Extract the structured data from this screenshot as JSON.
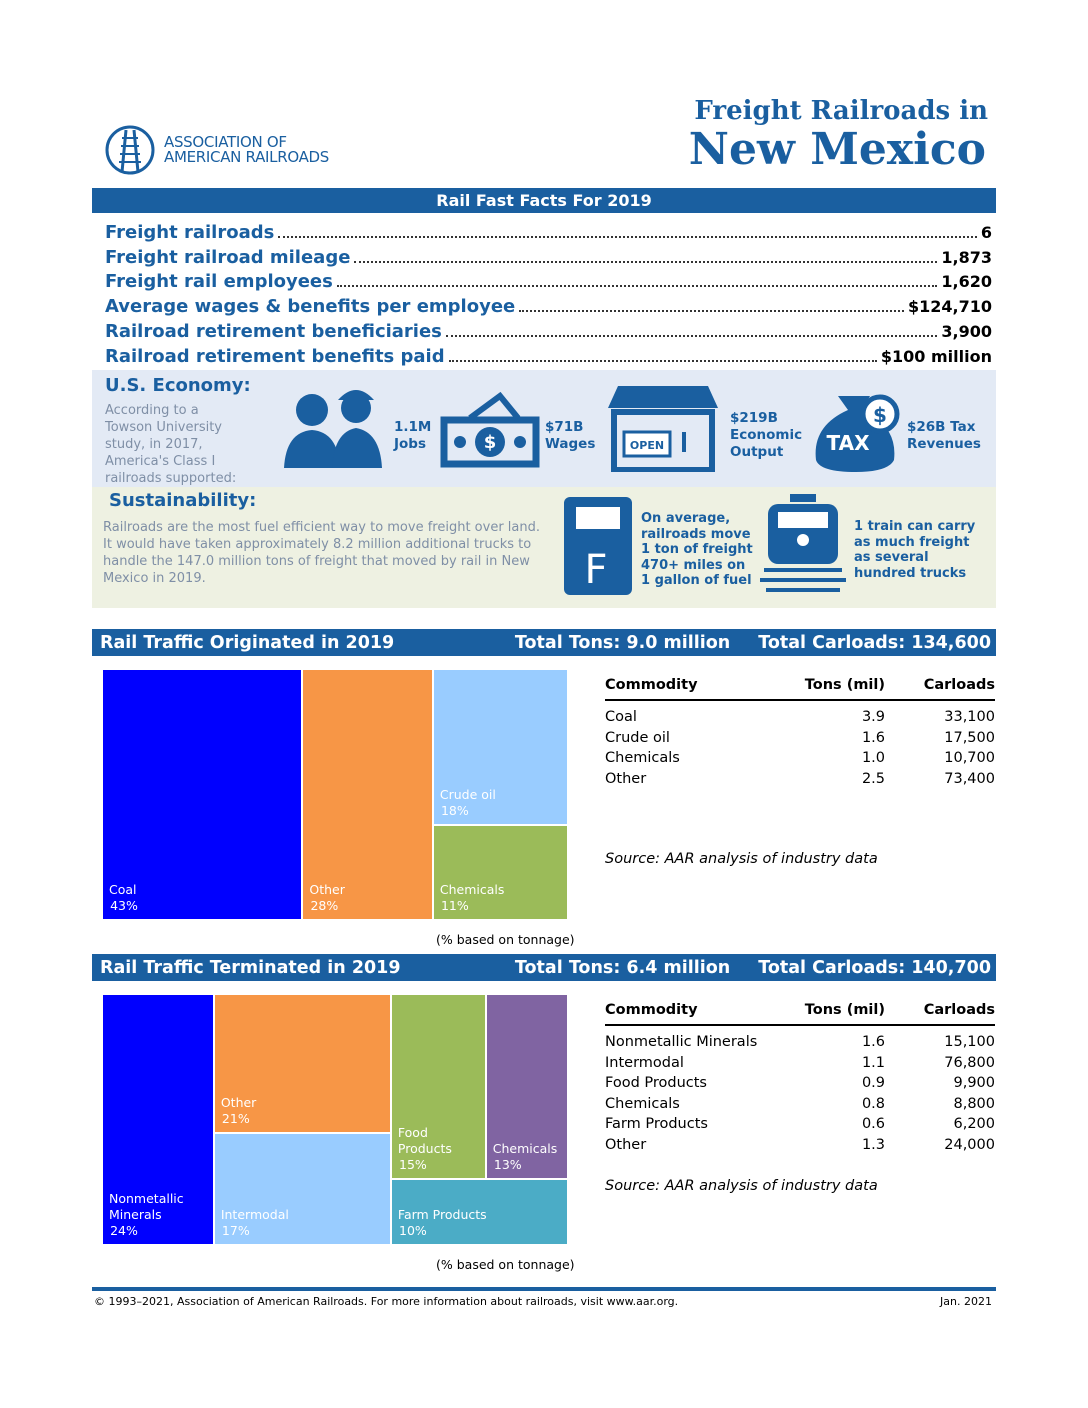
{
  "header": {
    "title_line1": "Freight Railroads in",
    "title_line2": "New Mexico",
    "logo_line1": "ASSOCIATION OF",
    "logo_line2": "AMERICAN RAILROADS"
  },
  "fast_facts": {
    "title": "Rail Fast Facts For 2019",
    "rows": [
      [
        "Freight railroads",
        "6"
      ],
      [
        "Freight railroad mileage",
        "1,873"
      ],
      [
        "Freight rail employees",
        "1,620"
      ],
      [
        "Average wages & benefits per employee",
        "$124,710"
      ],
      [
        "Railroad retirement beneficiaries",
        "3,900"
      ],
      [
        "Railroad retirement benefits paid",
        "$100 million"
      ]
    ]
  },
  "economy": {
    "title": "U.S. Economy:",
    "intro": "According to a Towson University study, in 2017, America's Class I railroads supported:",
    "items": [
      "1.1M Jobs",
      "$71B Wages",
      "$219B Economic Output",
      "$26B Tax Revenues"
    ]
  },
  "sustainability": {
    "title": "Sustainability:",
    "text": "Railroads are the most fuel efficient way to move freight over land. It would have taken approximately 8.2 million additional trucks to handle the 147.0 million tons of freight that moved by rail in New Mexico in 2019.",
    "items": [
      "On average, railroads move 1 ton of freight 470+ miles on 1 gallon of fuel",
      "1 train can carry as much freight as several hundred trucks"
    ]
  },
  "originated": {
    "title": "Rail Traffic Originated in 2019",
    "total_tons": "Total Tons: 9.0 million",
    "total_carloads": "Total Carloads: 134,600",
    "table": {
      "header": [
        "Commodity",
        "Tons (mil)",
        "Carloads"
      ],
      "rows": [
        [
          "Coal",
          "3.9",
          "33,100"
        ],
        [
          "Crude oil",
          "1.6",
          "17,500"
        ],
        [
          "Chemicals",
          "1.0",
          "10,700"
        ],
        [
          "Other",
          "2.5",
          "73,400"
        ]
      ]
    },
    "source": "Source:  AAR analysis of industry data",
    "note": "(% based on tonnage)",
    "treemap": [
      {
        "label": "Coal",
        "value": 43,
        "value_label": "43%",
        "color": "#0000ff"
      },
      {
        "label": "Other",
        "value": 28,
        "value_label": "28%",
        "color": "#f79646"
      },
      {
        "label": "Crude oil",
        "value": 18,
        "value_label": "18%",
        "color": "#99ccff"
      },
      {
        "label": "Chemicals",
        "value": 11,
        "value_label": "11%",
        "color": "#9bbb59"
      }
    ]
  },
  "terminated": {
    "title": "Rail Traffic Terminated in 2019",
    "total_tons": "Total Tons: 6.4 million",
    "total_carloads": "Total Carloads: 140,700",
    "table": {
      "header": [
        "Commodity",
        "Tons (mil)",
        "Carloads"
      ],
      "rows": [
        [
          "Nonmetallic Minerals",
          "1.6",
          "15,100"
        ],
        [
          "Intermodal",
          "1.1",
          "76,800"
        ],
        [
          "Food Products",
          "0.9",
          "9,900"
        ],
        [
          "Chemicals",
          "0.8",
          "8,800"
        ],
        [
          "Farm Products",
          "0.6",
          "6,200"
        ],
        [
          "Other",
          "1.3",
          "24,000"
        ]
      ]
    },
    "source": "Source:  AAR analysis of industry data",
    "note": "(% based on tonnage)",
    "treemap": [
      {
        "label": "Nonmetallic Minerals",
        "value": 24,
        "value_label": "24%",
        "color": "#0000ff"
      },
      {
        "label": "Other",
        "value": 21,
        "value_label": "21%",
        "color": "#f79646"
      },
      {
        "label": "Intermodal",
        "value": 17,
        "value_label": "17%",
        "color": "#99ccff"
      },
      {
        "label": "Food Products",
        "value": 15,
        "value_label": "15%",
        "color": "#9bbb59"
      },
      {
        "label": "Chemicals",
        "value": 13,
        "value_label": "13%",
        "color": "#8064a2"
      },
      {
        "label": "Farm Products",
        "value": 10,
        "value_label": "10%",
        "color": "#4bacc6"
      }
    ]
  },
  "footer": {
    "left": "© 1993–2021, Association of American Railroads.  For more information about railroads, visit www.aar.org.",
    "right": "Jan. 2021"
  }
}
